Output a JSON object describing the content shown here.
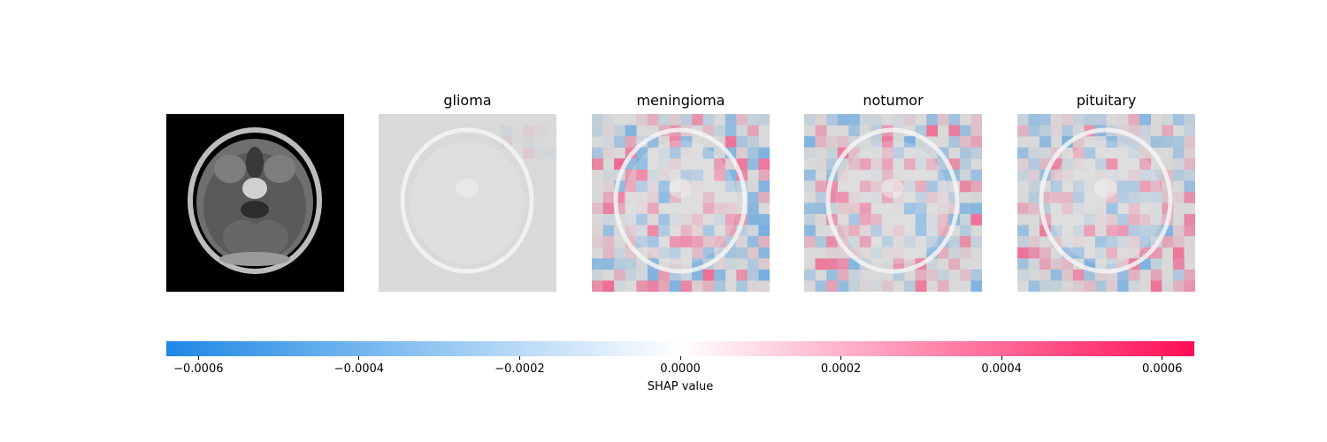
{
  "chart_data": {
    "type": "heatmap",
    "panels": [
      {
        "title": "",
        "kind": "input-image"
      },
      {
        "title": "glioma",
        "kind": "shap-overlay",
        "seed": 11,
        "intensity": 0.08
      },
      {
        "title": "meningioma",
        "kind": "shap-overlay",
        "seed": 23,
        "intensity": 0.55
      },
      {
        "title": "notumor",
        "kind": "shap-overlay",
        "seed": 37,
        "intensity": 0.5
      },
      {
        "title": "pituitary",
        "kind": "shap-overlay",
        "seed": 53,
        "intensity": 0.5
      }
    ],
    "colorbar": {
      "label": "SHAP value",
      "vmin": -0.00064,
      "vmax": 0.00064,
      "ticks": [
        -0.0006,
        -0.0004,
        -0.0002,
        0.0,
        0.0002,
        0.0004,
        0.0006
      ],
      "tick_labels": [
        "−0.0006",
        "−0.0004",
        "−0.0002",
        "0.0000",
        "0.0002",
        "0.0004",
        "0.0006"
      ],
      "negative_color": "#1e88e5",
      "positive_color": "#ff0d57",
      "mid_color": "#ffffff"
    }
  }
}
